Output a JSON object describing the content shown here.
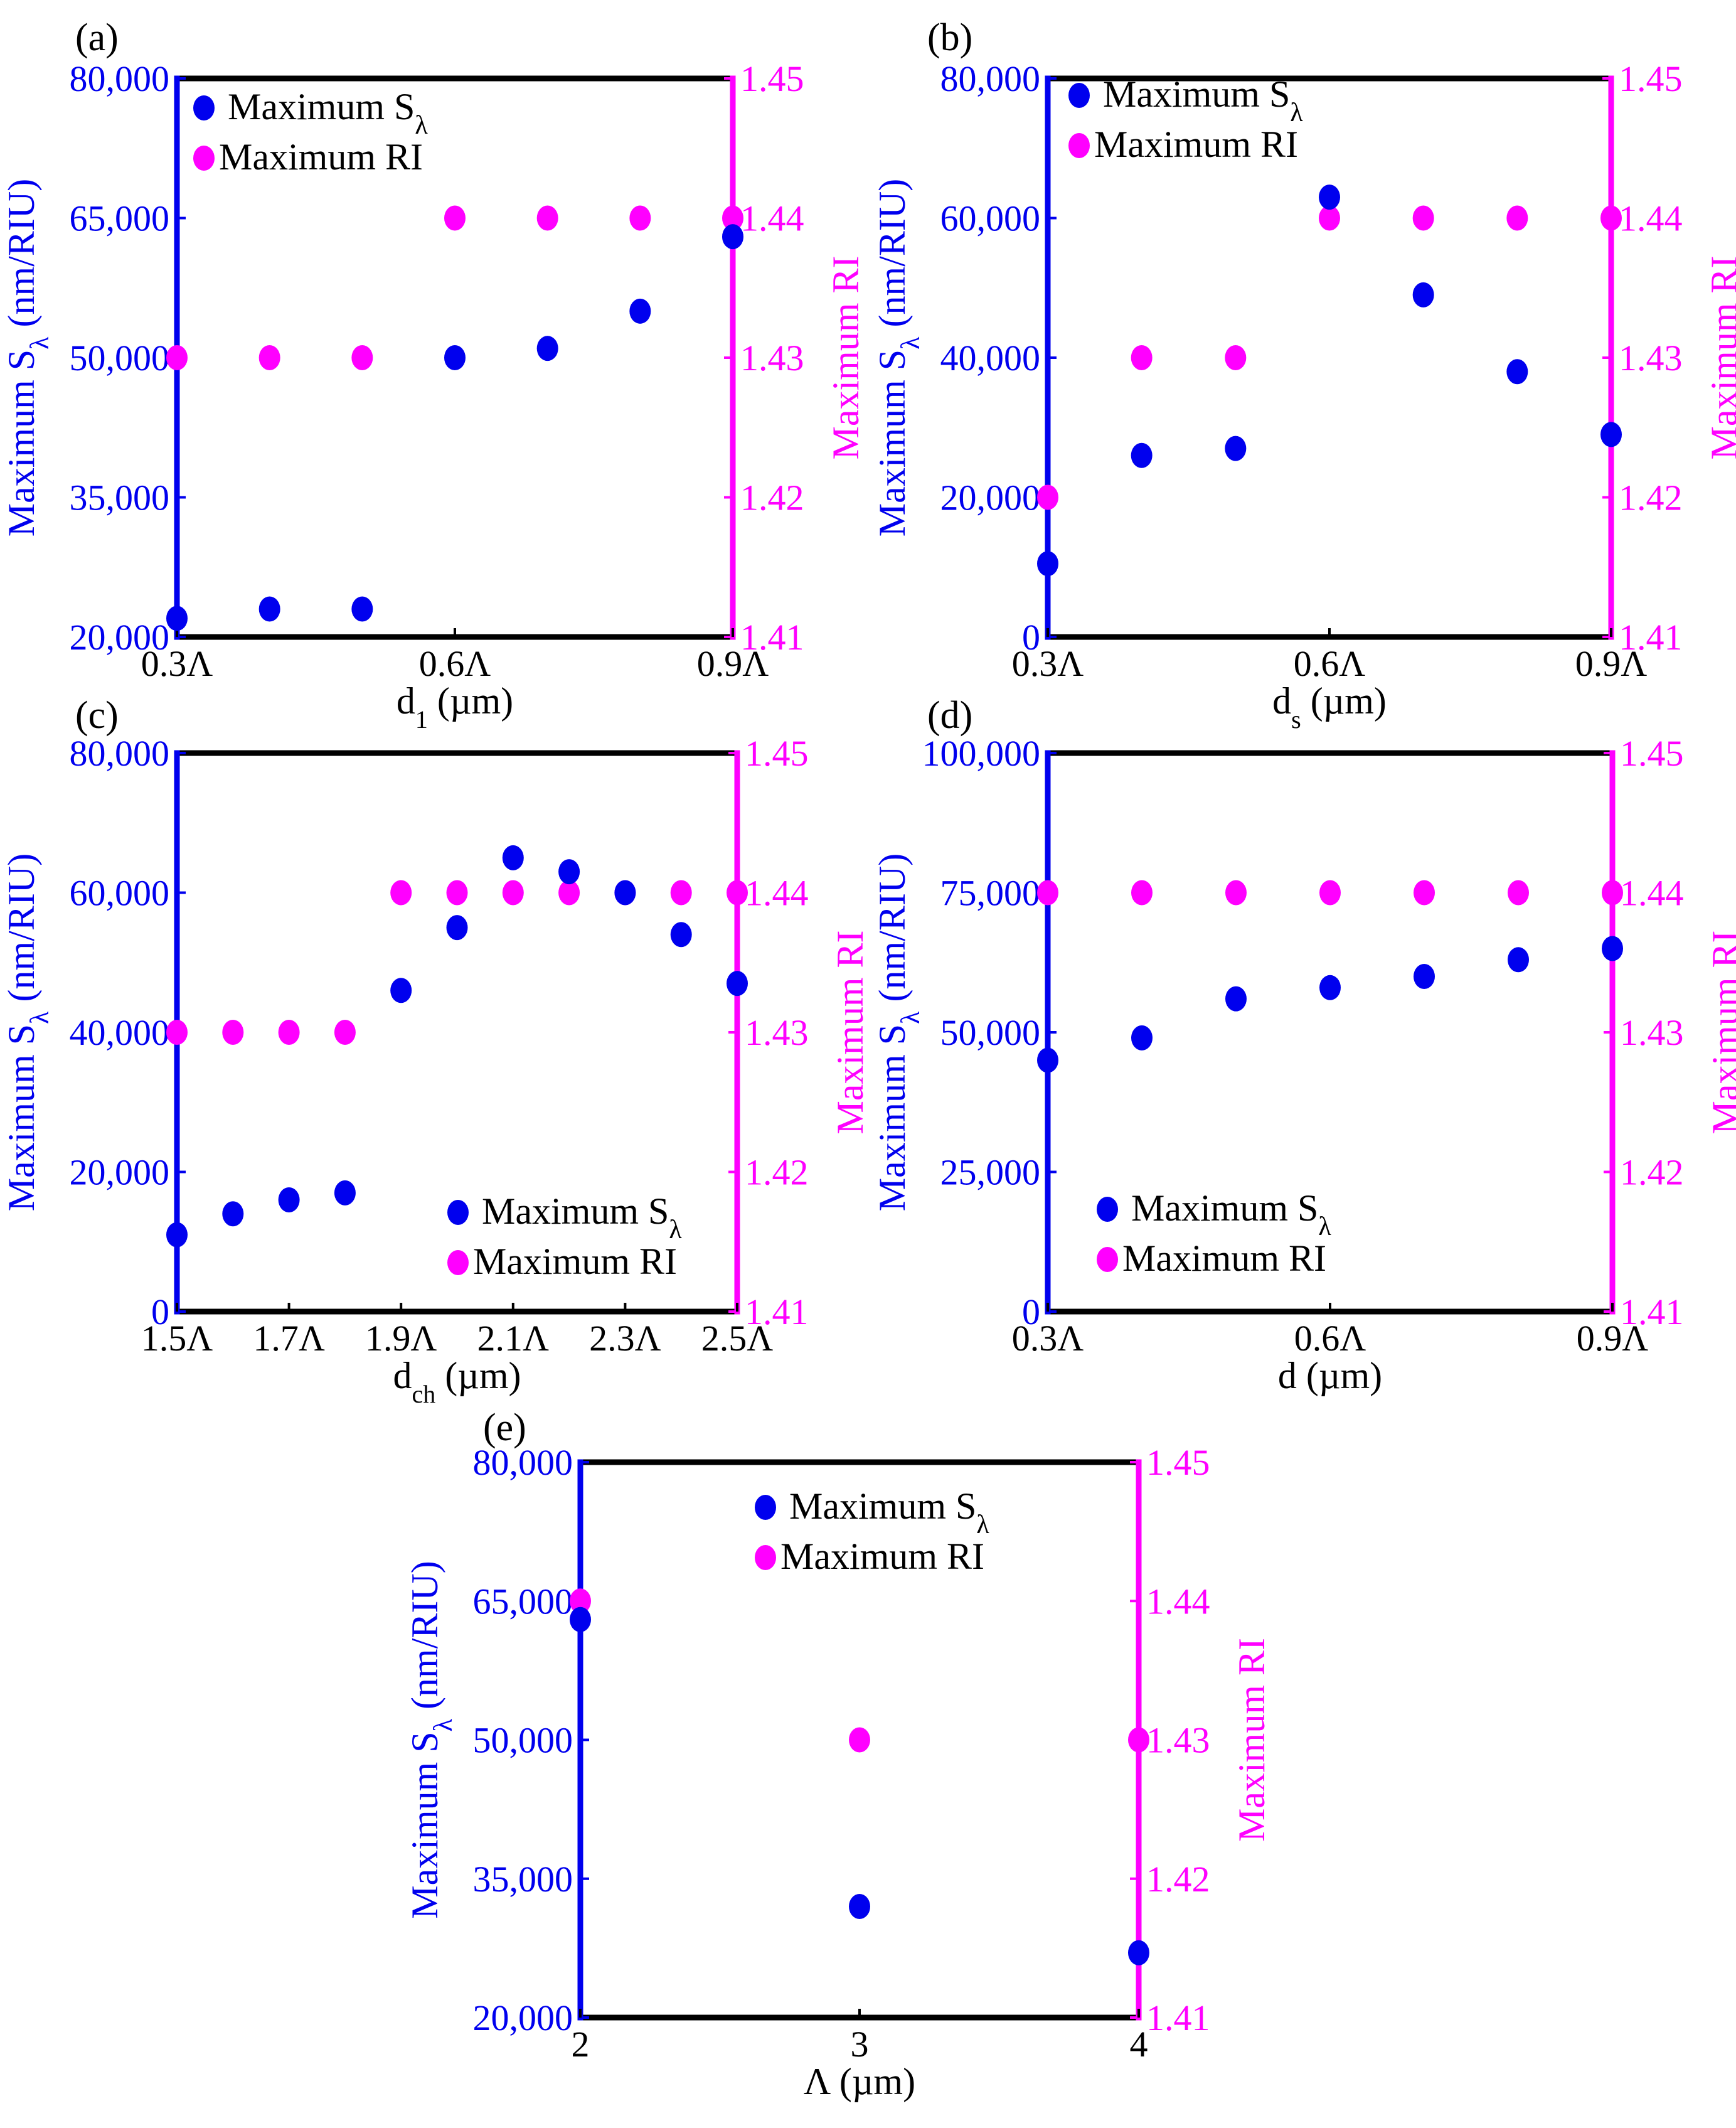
{
  "chart_data": [
    {
      "panel_label": "(a)",
      "type": "scatter",
      "xlabel": "d",
      "xlabel_sub": "1",
      "xlabel_tail": " (µm)",
      "ylabel_left": "Maximum S",
      "ylabel_left_sub": "λ",
      "ylabel_left_tail": " (nm/RIU)",
      "ylabel_right": "Maximum RI",
      "xlim": [
        0.3,
        0.9
      ],
      "xticks": [
        0.3,
        0.6,
        0.9
      ],
      "xtick_labels": [
        "0.3Λ",
        "0.6Λ",
        "0.9Λ"
      ],
      "ylim_left": [
        20000,
        80000
      ],
      "yticks_left": [
        20000,
        35000,
        50000,
        65000,
        80000
      ],
      "ytick_labels_left": [
        "20,000",
        "35,000",
        "50,000",
        "65,000",
        "80,000"
      ],
      "ylim_right": [
        1.41,
        1.45
      ],
      "yticks_right": [
        1.41,
        1.42,
        1.43,
        1.44,
        1.45
      ],
      "ytick_labels_right": [
        "1.41",
        "1.42",
        "1.43",
        "1.44",
        "1.45"
      ],
      "legend_position": "top-left",
      "legend": [
        "Maximum S",
        "Maximum RI"
      ],
      "legend_sub": "λ",
      "series": [
        {
          "name": "Maximum Sλ",
          "axis": "left",
          "color": "#0000ee",
          "x": [
            0.3,
            0.4,
            0.5,
            0.6,
            0.7,
            0.8,
            0.9
          ],
          "y": [
            22000,
            23000,
            23000,
            50000,
            51000,
            55000,
            63000
          ]
        },
        {
          "name": "Maximum RI",
          "axis": "right",
          "color": "#ff00ff",
          "x": [
            0.3,
            0.4,
            0.5,
            0.6,
            0.7,
            0.8,
            0.9
          ],
          "y": [
            1.43,
            1.43,
            1.43,
            1.44,
            1.44,
            1.44,
            1.44
          ]
        }
      ]
    },
    {
      "panel_label": "(b)",
      "type": "scatter",
      "xlabel": "d",
      "xlabel_sub": "s",
      "xlabel_tail": " (µm)",
      "ylabel_left": "Maximum S",
      "ylabel_left_sub": "λ",
      "ylabel_left_tail": " (nm/RIU)",
      "ylabel_right": "Maximum RI",
      "xlim": [
        0.3,
        0.9
      ],
      "xticks": [
        0.3,
        0.6,
        0.9
      ],
      "xtick_labels": [
        "0.3Λ",
        "0.6Λ",
        "0.9Λ"
      ],
      "ylim_left": [
        0,
        80000
      ],
      "yticks_left": [
        0,
        20000,
        40000,
        60000,
        80000
      ],
      "ytick_labels_left": [
        "0",
        "20,000",
        "40,000",
        "60,000",
        "80,000"
      ],
      "ylim_right": [
        1.41,
        1.45
      ],
      "yticks_right": [
        1.41,
        1.42,
        1.43,
        1.44,
        1.45
      ],
      "ytick_labels_right": [
        "1.41",
        "1.42",
        "1.43",
        "1.44",
        "1.45"
      ],
      "legend_position": "top-left",
      "legend": [
        "Maximum S",
        "Maximum RI"
      ],
      "legend_sub": "λ",
      "series": [
        {
          "name": "Maximum Sλ",
          "axis": "left",
          "color": "#0000ee",
          "x": [
            0.3,
            0.4,
            0.5,
            0.6,
            0.7,
            0.8,
            0.9
          ],
          "y": [
            10500,
            26000,
            27000,
            63000,
            49000,
            38000,
            29000
          ]
        },
        {
          "name": "Maximum RI",
          "axis": "right",
          "color": "#ff00ff",
          "x": [
            0.3,
            0.4,
            0.5,
            0.6,
            0.7,
            0.8,
            0.9
          ],
          "y": [
            1.42,
            1.43,
            1.43,
            1.44,
            1.44,
            1.44,
            1.44
          ]
        }
      ]
    },
    {
      "panel_label": "(c)",
      "type": "scatter",
      "xlabel": "d",
      "xlabel_sub": "ch",
      "xlabel_tail": " (µm)",
      "ylabel_left": "Maximum S",
      "ylabel_left_sub": "λ",
      "ylabel_left_tail": " (nm/RIU)",
      "ylabel_right": "Maximum RI",
      "xlim": [
        1.5,
        2.5
      ],
      "xticks": [
        1.5,
        1.7,
        1.9,
        2.1,
        2.3,
        2.5
      ],
      "xtick_labels": [
        "1.5Λ",
        "1.7Λ",
        "1.9Λ",
        "2.1Λ",
        "2.3Λ",
        "2.5Λ"
      ],
      "ylim_left": [
        0,
        80000
      ],
      "yticks_left": [
        0,
        20000,
        40000,
        60000,
        80000
      ],
      "ytick_labels_left": [
        "0",
        "20,000",
        "40,000",
        "60,000",
        "80,000"
      ],
      "ylim_right": [
        1.41,
        1.45
      ],
      "yticks_right": [
        1.41,
        1.42,
        1.43,
        1.44,
        1.45
      ],
      "ytick_labels_right": [
        "1.41",
        "1.42",
        "1.43",
        "1.44",
        "1.45"
      ],
      "legend_position": "bottom-right",
      "legend": [
        "Maximum S",
        "Maximum RI"
      ],
      "legend_sub": "λ",
      "series": [
        {
          "name": "Maximum Sλ",
          "axis": "left",
          "color": "#0000ee",
          "x": [
            1.5,
            1.6,
            1.7,
            1.8,
            1.9,
            2.0,
            2.1,
            2.2,
            2.3,
            2.4,
            2.5
          ],
          "y": [
            11000,
            14000,
            16000,
            17000,
            46000,
            55000,
            65000,
            63000,
            60000,
            54000,
            47000
          ]
        },
        {
          "name": "Maximum RI",
          "axis": "right",
          "color": "#ff00ff",
          "x": [
            1.5,
            1.6,
            1.7,
            1.8,
            1.9,
            2.0,
            2.1,
            2.2,
            2.3,
            2.4,
            2.5
          ],
          "y": [
            1.43,
            1.43,
            1.43,
            1.43,
            1.44,
            1.44,
            1.44,
            1.44,
            1.44,
            1.44,
            1.44
          ]
        }
      ]
    },
    {
      "panel_label": "(d)",
      "type": "scatter",
      "xlabel": "d",
      "xlabel_sub": "",
      "xlabel_tail": " (µm)",
      "ylabel_left": "Maximum S",
      "ylabel_left_sub": "λ",
      "ylabel_left_tail": " (nm/RIU)",
      "ylabel_right": "Maximum RI",
      "xlim": [
        0.3,
        0.9
      ],
      "xticks": [
        0.3,
        0.6,
        0.9
      ],
      "xtick_labels": [
        "0.3Λ",
        "0.6Λ",
        "0.9Λ"
      ],
      "ylim_left": [
        0,
        100000
      ],
      "yticks_left": [
        0,
        25000,
        50000,
        75000,
        100000
      ],
      "ytick_labels_left": [
        "0",
        "25,000",
        "50,000",
        "75,000",
        "100,000"
      ],
      "ylim_right": [
        1.41,
        1.45
      ],
      "yticks_right": [
        1.41,
        1.42,
        1.43,
        1.44,
        1.45
      ],
      "ytick_labels_right": [
        "1.41",
        "1.42",
        "1.43",
        "1.44",
        "1.45"
      ],
      "legend_position": "bottom-left",
      "legend": [
        "Maximum S",
        "Maximum RI"
      ],
      "legend_sub": "λ",
      "series": [
        {
          "name": "Maximum Sλ",
          "axis": "left",
          "color": "#0000ee",
          "x": [
            0.3,
            0.4,
            0.5,
            0.6,
            0.7,
            0.8,
            0.9
          ],
          "y": [
            45000,
            49000,
            56000,
            58000,
            60000,
            63000,
            65000
          ]
        },
        {
          "name": "Maximum RI",
          "axis": "right",
          "color": "#ff00ff",
          "x": [
            0.3,
            0.4,
            0.5,
            0.6,
            0.7,
            0.8,
            0.9
          ],
          "y": [
            1.44,
            1.44,
            1.44,
            1.44,
            1.44,
            1.44,
            1.44
          ]
        }
      ]
    },
    {
      "panel_label": "(e)",
      "type": "scatter",
      "xlabel": "Λ",
      "xlabel_sub": "",
      "xlabel_tail": " (µm)",
      "ylabel_left": "Maximum S",
      "ylabel_left_sub": "λ",
      "ylabel_left_tail": " (nm/RIU)",
      "ylabel_right": "Maximum RI",
      "xlim": [
        2,
        4
      ],
      "xticks": [
        2,
        3,
        4
      ],
      "xtick_labels": [
        "2",
        "3",
        "4"
      ],
      "ylim_left": [
        20000,
        80000
      ],
      "yticks_left": [
        20000,
        35000,
        50000,
        65000,
        80000
      ],
      "ytick_labels_left": [
        "20,000",
        "35,000",
        "50,000",
        "65,000",
        "80,000"
      ],
      "ylim_right": [
        1.41,
        1.45
      ],
      "yticks_right": [
        1.41,
        1.42,
        1.43,
        1.44,
        1.45
      ],
      "ytick_labels_right": [
        "1.41",
        "1.42",
        "1.43",
        "1.44",
        "1.45"
      ],
      "legend_position": "top-center",
      "legend": [
        "Maximum S",
        "Maximum RI"
      ],
      "legend_sub": "λ",
      "series": [
        {
          "name": "Maximum Sλ",
          "axis": "left",
          "color": "#0000ee",
          "x": [
            2,
            3,
            4
          ],
          "y": [
            63000,
            32000,
            27000
          ]
        },
        {
          "name": "Maximum RI",
          "axis": "right",
          "color": "#ff00ff",
          "x": [
            2,
            3,
            4
          ],
          "y": [
            1.44,
            1.43,
            1.43
          ]
        }
      ]
    }
  ]
}
